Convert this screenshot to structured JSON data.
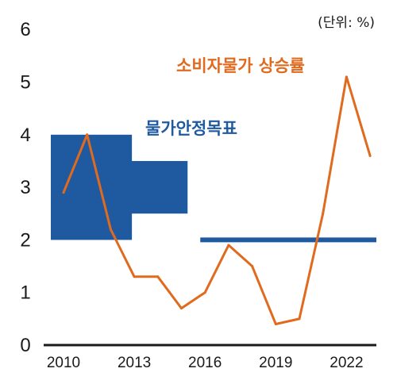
{
  "chart_data": {
    "type": "line",
    "unit_label": "(단위: %)",
    "ylim": [
      0,
      6
    ],
    "yticks": [
      "0",
      "1",
      "2",
      "3",
      "4",
      "5",
      "6"
    ],
    "xlim": [
      2010,
      2023
    ],
    "xticks": [
      "2010",
      "2013",
      "2016",
      "2019",
      "2022"
    ],
    "colors": {
      "cpi": "#e06a1e",
      "target": "#1f5aa0",
      "axis": "#1a1a1a"
    },
    "series": [
      {
        "name": "소비자물가 상승률",
        "x": [
          2010,
          2011,
          2012,
          2013,
          2014,
          2015,
          2016,
          2017,
          2018,
          2019,
          2020,
          2021,
          2022,
          2023
        ],
        "values": [
          2.9,
          4.0,
          2.2,
          1.3,
          1.3,
          0.7,
          1.0,
          1.9,
          1.5,
          0.4,
          0.5,
          2.5,
          5.1,
          3.6
        ]
      }
    ],
    "target": {
      "name": "물가안정목표",
      "bands": [
        {
          "x_from": 2010,
          "x_to": 2012.9,
          "low": 2.0,
          "high": 4.0
        },
        {
          "x_from": 2012.9,
          "x_to": 2015.8,
          "low": 2.5,
          "high": 3.5
        }
      ],
      "point": {
        "x_from": 2015.8,
        "x_to": 2023.5,
        "value": 2.0
      }
    }
  }
}
